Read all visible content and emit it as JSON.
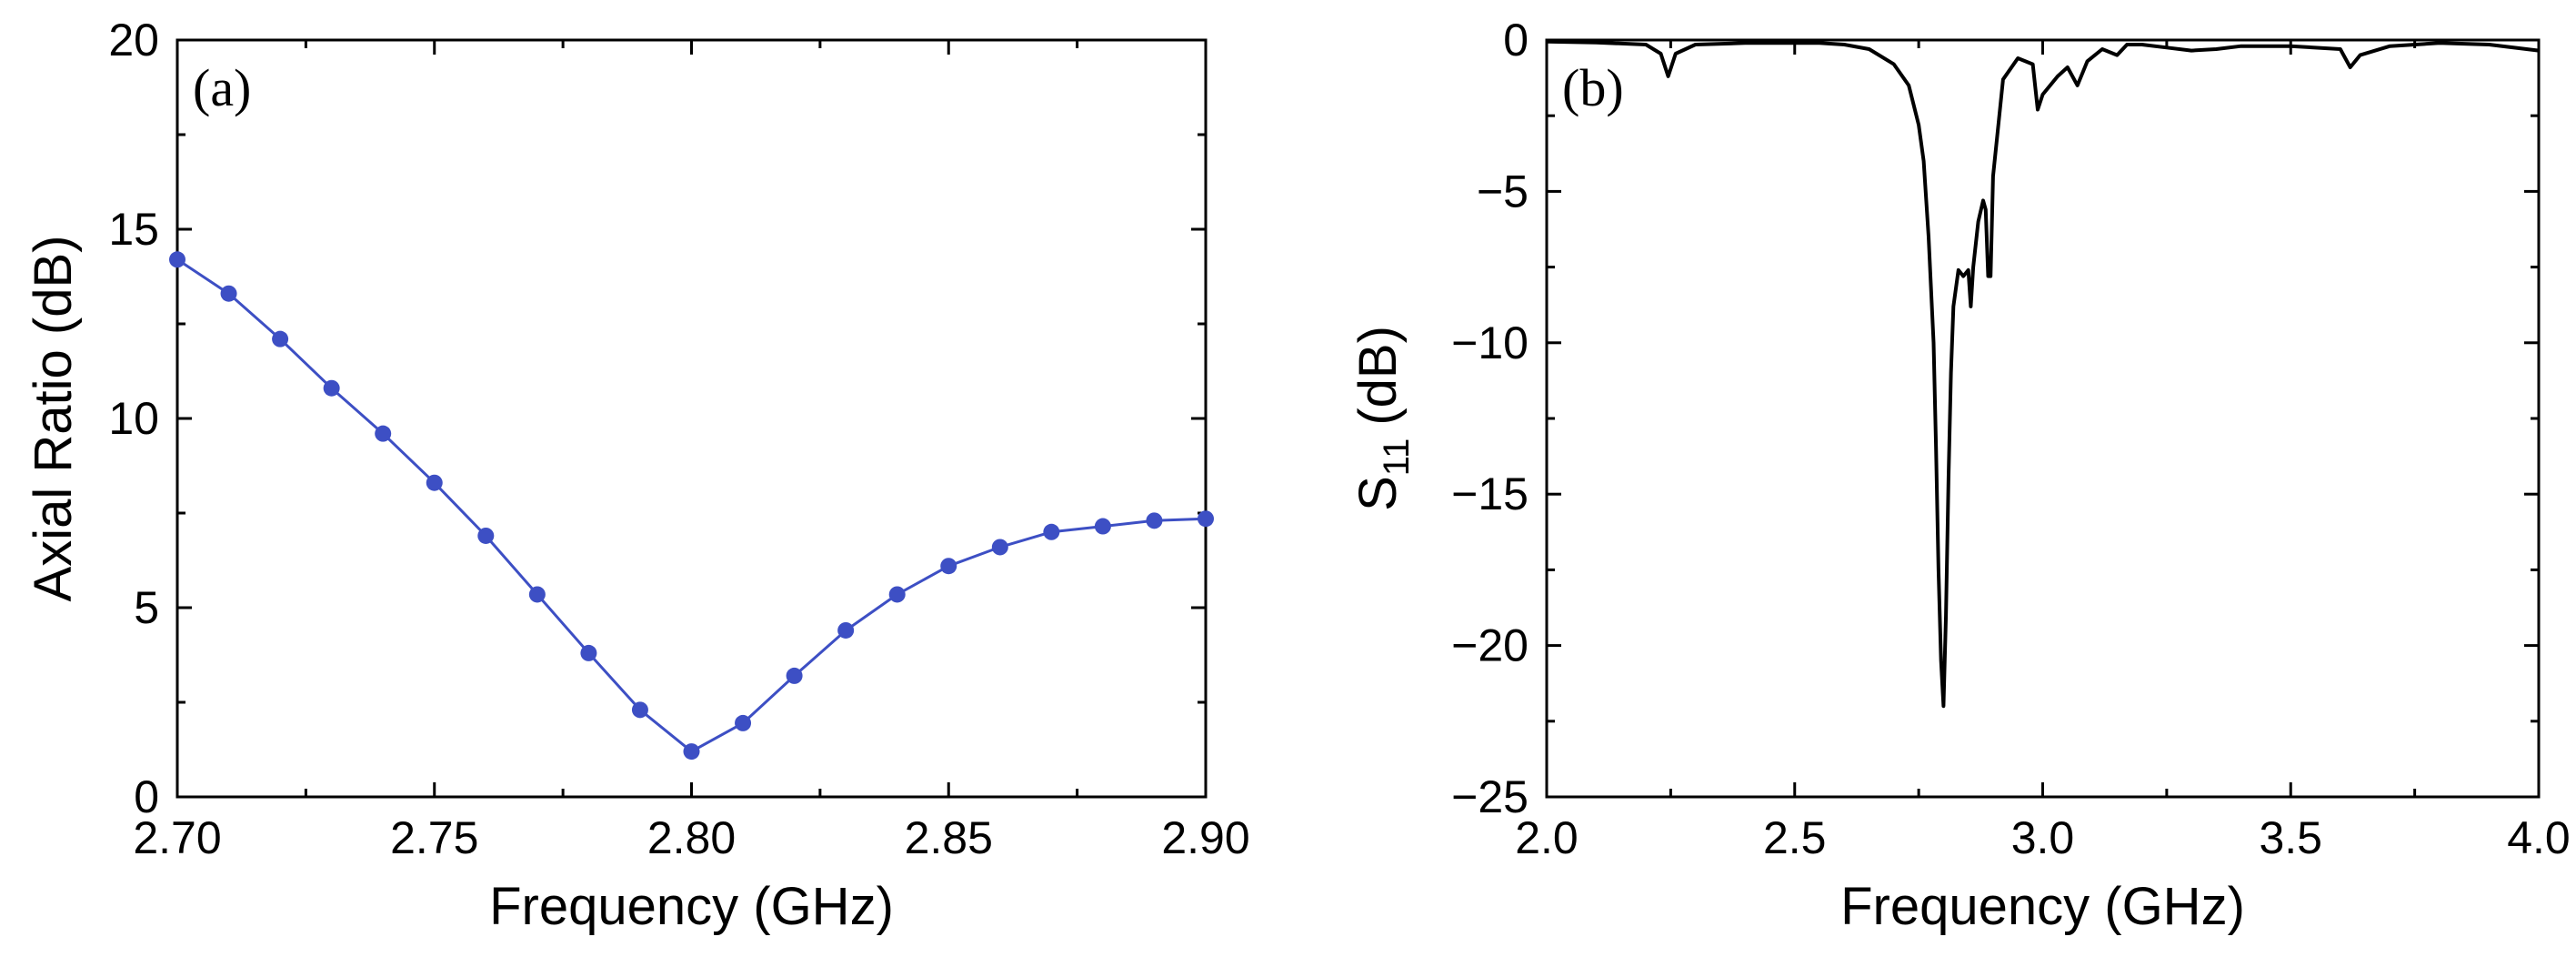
{
  "chart_data": [
    {
      "type": "line",
      "panel_label": "(a)",
      "xlabel": "Frequency (GHz)",
      "ylabel": "Axial Ratio (dB)",
      "xlim": [
        2.7,
        2.9
      ],
      "ylim": [
        0,
        20
      ],
      "xticks": [
        2.7,
        2.75,
        2.8,
        2.85,
        2.9
      ],
      "xtick_labels": [
        "2.70",
        "2.75",
        "2.80",
        "2.85",
        "2.90"
      ],
      "yticks": [
        0,
        5,
        10,
        15,
        20
      ],
      "ytick_labels": [
        "0",
        "5",
        "10",
        "15",
        "20"
      ],
      "grid": false,
      "markers": true,
      "color": "#3d4fc4",
      "x": [
        2.7,
        2.71,
        2.72,
        2.73,
        2.74,
        2.75,
        2.76,
        2.77,
        2.78,
        2.79,
        2.8,
        2.81,
        2.82,
        2.83,
        2.84,
        2.85,
        2.86,
        2.87,
        2.88,
        2.89,
        2.9
      ],
      "y": [
        14.2,
        13.3,
        12.1,
        10.8,
        9.6,
        8.3,
        6.9,
        5.35,
        3.8,
        2.3,
        1.2,
        1.95,
        3.2,
        4.4,
        5.35,
        6.1,
        6.6,
        7.0,
        7.15,
        7.3,
        7.35
      ]
    },
    {
      "type": "line",
      "panel_label": "(b)",
      "xlabel": "Frequency (GHz)",
      "ylabel_main": "S",
      "ylabel_sub": "11",
      "ylabel_unit": "(dB)",
      "xlim": [
        2.0,
        4.0
      ],
      "ylim": [
        -25,
        0
      ],
      "xticks": [
        2.0,
        2.5,
        3.0,
        3.5,
        4.0
      ],
      "xtick_labels": [
        "2.0",
        "2.5",
        "3.0",
        "3.5",
        "4.0"
      ],
      "yticks": [
        0,
        -5,
        -10,
        -15,
        -20,
        -25
      ],
      "ytick_labels": [
        "0",
        "-5",
        "-10",
        "-15",
        "-20",
        "-25"
      ],
      "grid": false,
      "markers": false,
      "color": "#000000",
      "x": [
        2.0,
        2.1,
        2.2,
        2.23,
        2.245,
        2.26,
        2.3,
        2.4,
        2.5,
        2.55,
        2.6,
        2.65,
        2.7,
        2.73,
        2.75,
        2.76,
        2.77,
        2.78,
        2.785,
        2.79,
        2.795,
        2.8,
        2.805,
        2.81,
        2.815,
        2.82,
        2.83,
        2.84,
        2.85,
        2.855,
        2.86,
        2.87,
        2.88,
        2.885,
        2.89,
        2.895,
        2.9,
        2.92,
        2.95,
        2.98,
        2.99,
        3.0,
        3.03,
        3.05,
        3.07,
        3.09,
        3.12,
        3.15,
        3.17,
        3.2,
        3.25,
        3.3,
        3.35,
        3.4,
        3.5,
        3.6,
        3.62,
        3.64,
        3.7,
        3.8,
        3.9,
        4.0
      ],
      "y": [
        -0.05,
        -0.08,
        -0.15,
        -0.45,
        -1.2,
        -0.45,
        -0.15,
        -0.1,
        -0.1,
        -0.1,
        -0.15,
        -0.3,
        -0.8,
        -1.5,
        -2.8,
        -4.0,
        -6.5,
        -10.0,
        -13.5,
        -17.5,
        -20.5,
        -22.0,
        -19.0,
        -14.5,
        -11.0,
        -8.8,
        -7.6,
        -7.8,
        -7.6,
        -8.8,
        -7.5,
        -6.0,
        -5.3,
        -5.6,
        -7.8,
        -7.8,
        -4.5,
        -1.3,
        -0.6,
        -0.8,
        -2.3,
        -1.8,
        -1.2,
        -0.9,
        -1.5,
        -0.7,
        -0.3,
        -0.5,
        -0.15,
        -0.15,
        -0.25,
        -0.35,
        -0.3,
        -0.2,
        -0.2,
        -0.3,
        -0.9,
        -0.5,
        -0.2,
        -0.1,
        -0.15,
        -0.35
      ]
    }
  ]
}
